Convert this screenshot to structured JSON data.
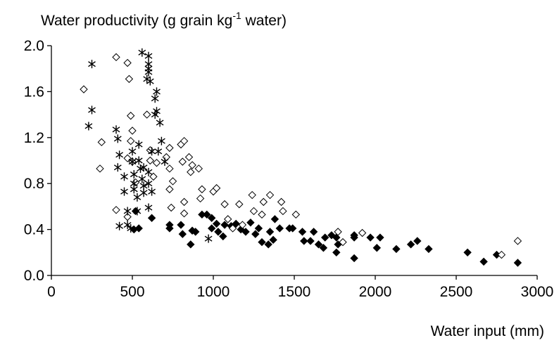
{
  "chart_data": {
    "type": "scatter",
    "ylabel": {
      "text": "Water productivity (g grain kg",
      "superscript": "-1",
      "rest": " water)"
    },
    "xlabel": "Water input (mm)",
    "xlim": [
      0,
      3000
    ],
    "xticks": [
      0,
      500,
      1000,
      1500,
      2000,
      2500,
      3000
    ],
    "ylim": [
      0,
      2
    ],
    "yticks": [
      {
        "value": 0,
        "label": "0.0"
      },
      0.4,
      0.8,
      1.2,
      1.6,
      {
        "value": 2,
        "label": "2.0"
      }
    ],
    "grid": false,
    "series": [
      {
        "marker": "diamond-filled",
        "color": "#000000",
        "x": [
          510,
          520,
          540,
          620,
          730,
          730,
          800,
          810,
          860,
          870,
          890,
          930,
          960,
          990,
          990,
          1020,
          1030,
          1060,
          1070,
          1110,
          1140,
          1170,
          1200,
          1230,
          1260,
          1280,
          1300,
          1340,
          1370,
          1350,
          1380,
          1410,
          1470,
          1490,
          1550,
          1560,
          1600,
          1620,
          1650,
          1680,
          1690,
          1730,
          1760,
          1760,
          1770,
          1870,
          1870,
          1870,
          1970,
          2010,
          2030,
          2130,
          2220,
          2260,
          2330,
          2570,
          2670,
          2750,
          2880
        ],
        "values": [
          0.4,
          0.56,
          0.41,
          0.5,
          0.44,
          0.41,
          0.44,
          0.36,
          0.27,
          0.39,
          0.38,
          0.53,
          0.53,
          0.5,
          0.41,
          0.45,
          0.38,
          0.34,
          0.44,
          0.43,
          0.45,
          0.4,
          0.38,
          0.46,
          0.36,
          0.41,
          0.29,
          0.27,
          0.31,
          0.38,
          0.49,
          0.41,
          0.41,
          0.41,
          0.38,
          0.3,
          0.3,
          0.38,
          0.27,
          0.24,
          0.33,
          0.35,
          0.33,
          0.2,
          0.27,
          0.35,
          0.33,
          0.15,
          0.33,
          0.24,
          0.33,
          0.23,
          0.27,
          0.3,
          0.23,
          0.2,
          0.12,
          0.18,
          0.11
        ]
      },
      {
        "marker": "diamond-open",
        "color": "#000000",
        "x": [
          400,
          470,
          480,
          200,
          310,
          300,
          490,
          500,
          490,
          470,
          500,
          520,
          400,
          470,
          590,
          610,
          610,
          630,
          650,
          710,
          730,
          730,
          750,
          730,
          740,
          800,
          820,
          850,
          870,
          810,
          860,
          820,
          820,
          910,
          920,
          930,
          1000,
          1020,
          1070,
          1090,
          1160,
          1240,
          1310,
          1350,
          1300,
          1420,
          1430,
          1510,
          1250,
          1180,
          1120,
          1770,
          1800,
          1920,
          2780,
          2880
        ],
        "values": [
          1.9,
          1.85,
          1.71,
          1.62,
          1.16,
          0.93,
          1.39,
          1.26,
          1.17,
          1.02,
          0.99,
          0.81,
          0.57,
          0.51,
          1.4,
          1.09,
          1.0,
          0.86,
          0.98,
          1.03,
          1.11,
          0.93,
          0.82,
          0.75,
          0.59,
          1.14,
          1.17,
          1.03,
          0.96,
          0.99,
          0.9,
          0.64,
          0.54,
          0.93,
          0.67,
          0.75,
          0.73,
          0.76,
          0.62,
          0.49,
          0.62,
          0.7,
          0.64,
          0.7,
          0.53,
          0.64,
          0.56,
          0.53,
          0.56,
          0.44,
          0.41,
          0.38,
          0.29,
          0.37,
          0.18,
          0.3
        ]
      },
      {
        "marker": "asterisk",
        "color": "#000000",
        "x": [
          250,
          250,
          230,
          400,
          410,
          420,
          410,
          450,
          450,
          420,
          470,
          470,
          490,
          500,
          500,
          510,
          510,
          510,
          530,
          530,
          540,
          540,
          550,
          560,
          570,
          570,
          600,
          600,
          620,
          560,
          600,
          600,
          600,
          600,
          590,
          610,
          650,
          640,
          650,
          640,
          670,
          680,
          620,
          660,
          700,
          570,
          600,
          970
        ],
        "values": [
          1.84,
          1.44,
          1.3,
          1.27,
          1.19,
          1.05,
          0.94,
          0.86,
          0.73,
          0.43,
          0.56,
          0.44,
          0.41,
          1.08,
          0.99,
          0.88,
          0.8,
          0.75,
          0.68,
          0.56,
          1.14,
          1.0,
          0.93,
          0.84,
          0.78,
          0.72,
          0.9,
          0.8,
          0.73,
          1.94,
          1.91,
          1.84,
          1.8,
          1.77,
          1.71,
          1.69,
          1.6,
          1.54,
          1.43,
          1.4,
          1.33,
          1.17,
          1.08,
          1.08,
          0.99,
          0.94,
          0.59,
          0.32
        ]
      }
    ]
  }
}
